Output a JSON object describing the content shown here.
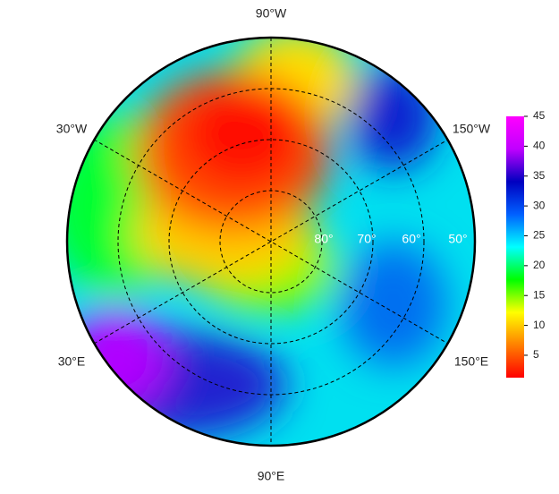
{
  "map": {
    "longitude_labels": [
      "90°W",
      "150°W",
      "30°W",
      "30°E",
      "150°E",
      "90°E"
    ],
    "latitude_labels": [
      "80°",
      "70°",
      "60°",
      "50°"
    ],
    "colorbar": {
      "lim": [
        1.25,
        45
      ],
      "ticks": [
        5,
        10,
        15,
        20,
        25,
        30,
        35,
        40,
        45
      ],
      "colors": [
        "#ff0000",
        "#ff8000",
        "#ffff00",
        "#00ff00",
        "#00ffff",
        "#0060ff",
        "#0000c0",
        "#c000ff",
        "#ff00ff"
      ]
    }
  }
}
